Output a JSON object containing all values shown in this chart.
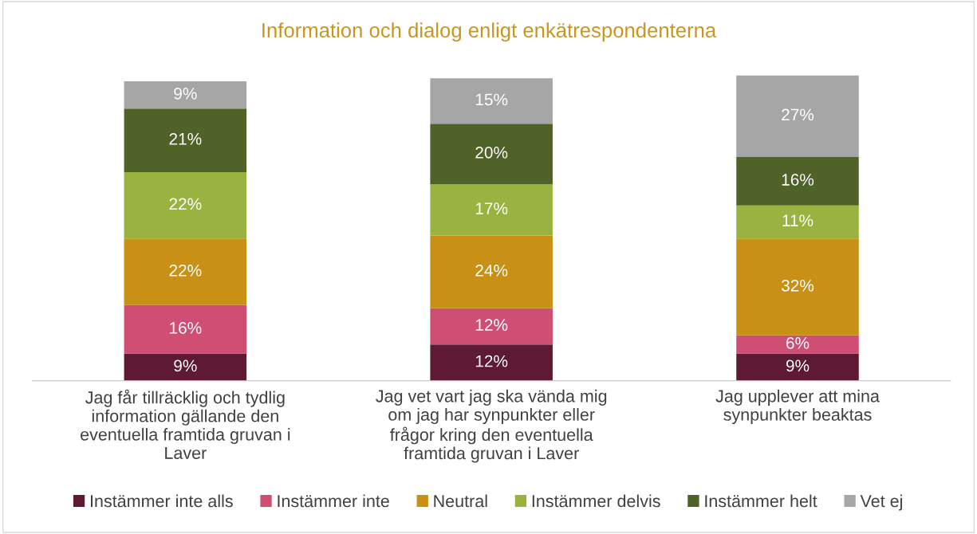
{
  "chart_data": {
    "type": "bar",
    "stacked": true,
    "legend": "bottom",
    "grid": false,
    "title": "Information och dialog enligt enkätrespondenterna",
    "categories": [
      "Jag får tillräcklig och tydlig information gällande den eventuella framtida gruvan i Laver",
      "Jag vet vart jag ska vända mig om jag har synpunkter eller frågor kring den eventuella framtida gruvan i Laver",
      "Jag upplever att mina synpunkter beaktas"
    ],
    "series": [
      {
        "name": "Instämmer inte alls",
        "color": "#5e1a33",
        "values": [
          9,
          12,
          9
        ],
        "value_labels": [
          "9%",
          "12%",
          "9%"
        ]
      },
      {
        "name": "Instämmer inte",
        "color": "#cf4f74",
        "values": [
          16,
          12,
          6
        ],
        "value_labels": [
          "16%",
          "12%",
          "6%"
        ]
      },
      {
        "name": "Neutral",
        "color": "#c89116",
        "values": [
          22,
          24,
          32
        ],
        "value_labels": [
          "22%",
          "24%",
          "32%"
        ]
      },
      {
        "name": "Instämmer delvis",
        "color": "#9ab240",
        "values": [
          22,
          17,
          11
        ],
        "value_labels": [
          "22%",
          "17%",
          "11%"
        ]
      },
      {
        "name": "Instämmer helt",
        "color": "#4f6228",
        "values": [
          21,
          20,
          16
        ],
        "value_labels": [
          "21%",
          "20%",
          "16%"
        ]
      },
      {
        "name": "Vet ej",
        "color": "#a6a6a6",
        "values": [
          9,
          15,
          27
        ],
        "value_labels": [
          "9%",
          "15%",
          "27%"
        ]
      }
    ]
  }
}
